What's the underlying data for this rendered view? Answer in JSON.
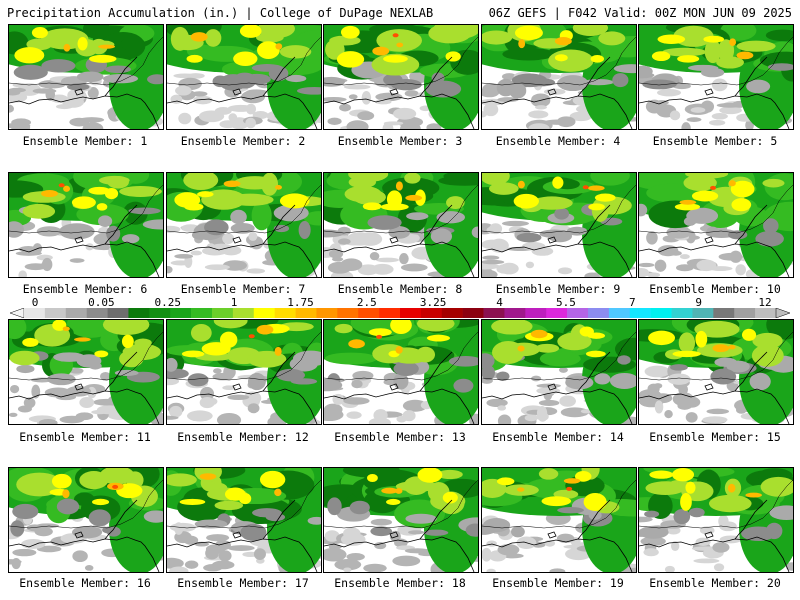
{
  "header": {
    "title_left": "Precipitation Accumulation (in.) | College of DuPage NEXLAB",
    "title_right": "06Z GEFS | F042 Valid: 00Z MON JUN 09 2025"
  },
  "colorbar": {
    "labels": [
      "0",
      "0.05",
      "0.25",
      "1",
      "1.75",
      "2.5",
      "3.25",
      "4",
      "5.5",
      "7",
      "9",
      "12"
    ],
    "colors": [
      "#e6e6e6",
      "#c8c8c8",
      "#aaaaaa",
      "#8c8c8c",
      "#6e6e6e",
      "#0c7a0c",
      "#138f13",
      "#1aa51a",
      "#35bb22",
      "#6bcf2a",
      "#a9df2e",
      "#ffff00",
      "#ffdc00",
      "#ffb900",
      "#ff9600",
      "#ff7300",
      "#ff4f00",
      "#ff2c00",
      "#e60000",
      "#c80000",
      "#a50000",
      "#8c0010",
      "#8c1050",
      "#a0188c",
      "#be1ebe",
      "#dc28dc",
      "#b464e6",
      "#8c8cf0",
      "#50c8ff",
      "#14e6ff",
      "#00f0f0",
      "#32d2d2",
      "#50b4b4",
      "#787878",
      "#a0a0a0",
      "#bebebe"
    ]
  },
  "members": [
    {
      "label": "Ensemble Member: 1"
    },
    {
      "label": "Ensemble Member: 2"
    },
    {
      "label": "Ensemble Member: 3"
    },
    {
      "label": "Ensemble Member: 4"
    },
    {
      "label": "Ensemble Member: 5"
    },
    {
      "label": "Ensemble Member: 6"
    },
    {
      "label": "Ensemble Member: 7"
    },
    {
      "label": "Ensemble Member: 8"
    },
    {
      "label": "Ensemble Member: 9"
    },
    {
      "label": "Ensemble Member: 10"
    },
    {
      "label": "Ensemble Member: 11"
    },
    {
      "label": "Ensemble Member: 12"
    },
    {
      "label": "Ensemble Member: 13"
    },
    {
      "label": "Ensemble Member: 14"
    },
    {
      "label": "Ensemble Member: 15"
    },
    {
      "label": "Ensemble Member: 16"
    },
    {
      "label": "Ensemble Member: 17"
    },
    {
      "label": "Ensemble Member: 18"
    },
    {
      "label": "Ensemble Member: 19"
    },
    {
      "label": "Ensemble Member: 20"
    }
  ]
}
